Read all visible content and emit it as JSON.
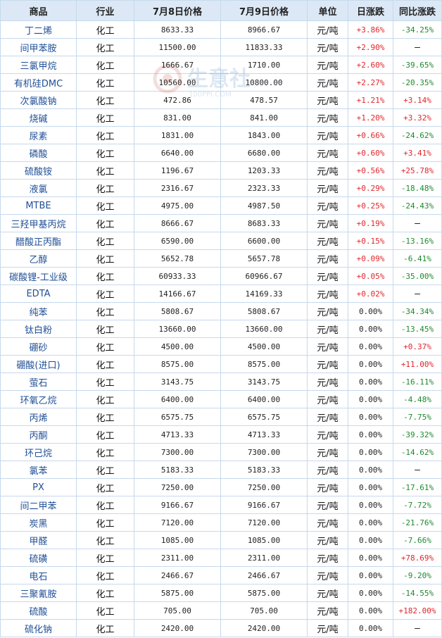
{
  "table": {
    "headers": [
      "商品",
      "行业",
      "7月8日价格",
      "7月9日价格",
      "单位",
      "日涨跌",
      "同比涨跌"
    ],
    "rows": [
      [
        "丁二烯",
        "化工",
        "8633.33",
        "8966.67",
        "元/吨",
        "+3.86%",
        "-34.25%"
      ],
      [
        "间甲苯胺",
        "化工",
        "11500.00",
        "11833.33",
        "元/吨",
        "+2.90%",
        "—"
      ],
      [
        "三氯甲烷",
        "化工",
        "1666.67",
        "1710.00",
        "元/吨",
        "+2.60%",
        "-39.65%"
      ],
      [
        "有机硅DMC",
        "化工",
        "10560.00",
        "10800.00",
        "元/吨",
        "+2.27%",
        "-20.35%"
      ],
      [
        "次氯酸钠",
        "化工",
        "472.86",
        "478.57",
        "元/吨",
        "+1.21%",
        "+3.14%"
      ],
      [
        "烧碱",
        "化工",
        "831.00",
        "841.00",
        "元/吨",
        "+1.20%",
        "+3.32%"
      ],
      [
        "尿素",
        "化工",
        "1831.00",
        "1843.00",
        "元/吨",
        "+0.66%",
        "-24.62%"
      ],
      [
        "磷酸",
        "化工",
        "6640.00",
        "6680.00",
        "元/吨",
        "+0.60%",
        "+3.41%"
      ],
      [
        "硫酸铵",
        "化工",
        "1196.67",
        "1203.33",
        "元/吨",
        "+0.56%",
        "+25.78%"
      ],
      [
        "液氯",
        "化工",
        "2316.67",
        "2323.33",
        "元/吨",
        "+0.29%",
        "-18.48%"
      ],
      [
        "MTBE",
        "化工",
        "4975.00",
        "4987.50",
        "元/吨",
        "+0.25%",
        "-24.43%"
      ],
      [
        "三羟甲基丙烷",
        "化工",
        "8666.67",
        "8683.33",
        "元/吨",
        "+0.19%",
        "—"
      ],
      [
        "醋酸正丙酯",
        "化工",
        "6590.00",
        "6600.00",
        "元/吨",
        "+0.15%",
        "-13.16%"
      ],
      [
        "乙醇",
        "化工",
        "5652.78",
        "5657.78",
        "元/吨",
        "+0.09%",
        "-6.41%"
      ],
      [
        "碳酸锂-工业级",
        "化工",
        "60933.33",
        "60966.67",
        "元/吨",
        "+0.05%",
        "-35.00%"
      ],
      [
        "EDTA",
        "化工",
        "14166.67",
        "14169.33",
        "元/吨",
        "+0.02%",
        "—"
      ],
      [
        "纯苯",
        "化工",
        "5808.67",
        "5808.67",
        "元/吨",
        "0.00%",
        "-34.34%"
      ],
      [
        "钛白粉",
        "化工",
        "13660.00",
        "13660.00",
        "元/吨",
        "0.00%",
        "-13.45%"
      ],
      [
        "硼砂",
        "化工",
        "4500.00",
        "4500.00",
        "元/吨",
        "0.00%",
        "+0.37%"
      ],
      [
        "硼酸(进口)",
        "化工",
        "8575.00",
        "8575.00",
        "元/吨",
        "0.00%",
        "+11.00%"
      ],
      [
        "萤石",
        "化工",
        "3143.75",
        "3143.75",
        "元/吨",
        "0.00%",
        "-16.11%"
      ],
      [
        "环氧乙烷",
        "化工",
        "6400.00",
        "6400.00",
        "元/吨",
        "0.00%",
        "-4.48%"
      ],
      [
        "丙烯",
        "化工",
        "6575.75",
        "6575.75",
        "元/吨",
        "0.00%",
        "-7.75%"
      ],
      [
        "丙酮",
        "化工",
        "4713.33",
        "4713.33",
        "元/吨",
        "0.00%",
        "-39.32%"
      ],
      [
        "环己烷",
        "化工",
        "7300.00",
        "7300.00",
        "元/吨",
        "0.00%",
        "-14.62%"
      ],
      [
        "氯苯",
        "化工",
        "5183.33",
        "5183.33",
        "元/吨",
        "0.00%",
        "—"
      ],
      [
        "PX",
        "化工",
        "7250.00",
        "7250.00",
        "元/吨",
        "0.00%",
        "-17.61%"
      ],
      [
        "间二甲苯",
        "化工",
        "9166.67",
        "9166.67",
        "元/吨",
        "0.00%",
        "-7.72%"
      ],
      [
        "炭黑",
        "化工",
        "7120.00",
        "7120.00",
        "元/吨",
        "0.00%",
        "-21.76%"
      ],
      [
        "甲醛",
        "化工",
        "1085.00",
        "1085.00",
        "元/吨",
        "0.00%",
        "-7.66%"
      ],
      [
        "硫磺",
        "化工",
        "2311.00",
        "2311.00",
        "元/吨",
        "0.00%",
        "+78.69%"
      ],
      [
        "电石",
        "化工",
        "2466.67",
        "2466.67",
        "元/吨",
        "0.00%",
        "-9.20%"
      ],
      [
        "三聚氰胺",
        "化工",
        "5875.00",
        "5875.00",
        "元/吨",
        "0.00%",
        "-14.55%"
      ],
      [
        "硫酸",
        "化工",
        "705.00",
        "705.00",
        "元/吨",
        "0.00%",
        "+182.00%"
      ],
      [
        "硫化钠",
        "化工",
        "2420.00",
        "2420.00",
        "元/吨",
        "0.00%",
        "—"
      ]
    ]
  },
  "watermark": {
    "text": "生意社",
    "subtext": "100PPI.COM",
    "icon": "logo-circle-icon"
  },
  "colors": {
    "up": "#e0262d",
    "down": "#1d8a2e",
    "link": "#1f4f96",
    "header_bg": "#dce8f5",
    "border": "#c6d9ec"
  }
}
